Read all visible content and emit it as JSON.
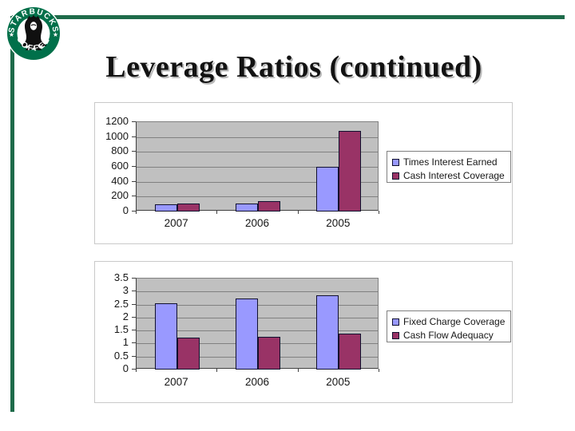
{
  "slide": {
    "title": "Leverage Ratios (continued)"
  },
  "logo": {
    "top_text": "STARBUCKS",
    "bottom_text": "COFFEE",
    "star": "★"
  },
  "colors": {
    "border_green": "#1e6b4a",
    "logo_green": "#00704a",
    "series1_blue": "#9999ff",
    "series2_maroon": "#993366",
    "plot_background": "#c0c0c0",
    "gridline": "#808080"
  },
  "chart_data": [
    {
      "type": "bar",
      "title": "",
      "categories": [
        "2007",
        "2006",
        "2005"
      ],
      "series": [
        {
          "name": "Times Interest Earned",
          "color": "#9999ff",
          "values": [
            100,
            110,
            600
          ]
        },
        {
          "name": "Cash Interest Coverage",
          "color": "#993366",
          "values": [
            110,
            135,
            1080
          ]
        }
      ],
      "ylim": [
        0,
        1200
      ],
      "yticks": [
        "0",
        "200",
        "400",
        "600",
        "800",
        "1000",
        "1200"
      ],
      "grid": true,
      "legend_position": "right",
      "plot_bg": "#c0c0c0"
    },
    {
      "type": "bar",
      "title": "",
      "categories": [
        "2007",
        "2006",
        "2005"
      ],
      "series": [
        {
          "name": "Fixed Charge Coverage",
          "color": "#9999ff",
          "values": [
            2.55,
            2.73,
            2.85
          ]
        },
        {
          "name": "Cash Flow Adequacy",
          "color": "#993366",
          "values": [
            1.23,
            1.27,
            1.38
          ]
        }
      ],
      "ylim": [
        0,
        3.5
      ],
      "yticks": [
        "0",
        "0.5",
        "1",
        "1.5",
        "2",
        "2.5",
        "3",
        "3.5"
      ],
      "grid": true,
      "legend_position": "right",
      "plot_bg": "#c0c0c0"
    }
  ]
}
